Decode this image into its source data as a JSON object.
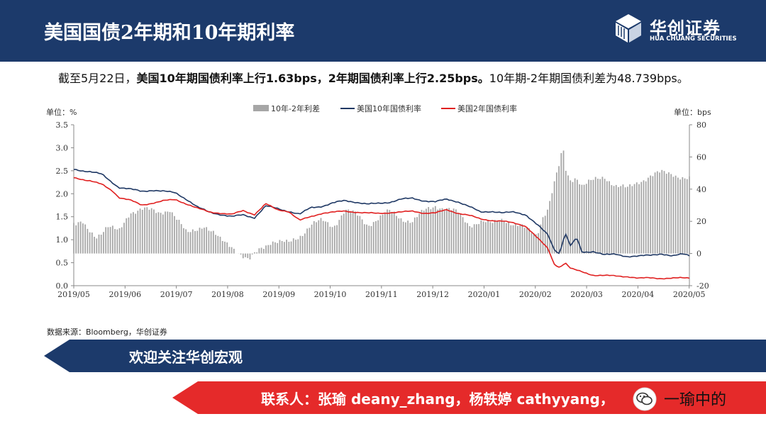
{
  "header": {
    "title": "美国国债2年期和10年期利率"
  },
  "logo": {
    "cn": "华创证券",
    "en": "HUA CHUANG SECURITIES"
  },
  "summary": {
    "prefix": "截至5月22日，",
    "bold_part": "美国10年期国债利率上行1.63bps，2年期国债利率上行2.25bps。",
    "suffix": "10年期-2年期国债利差为48.739bps。"
  },
  "chart_data": {
    "type": "bar+line",
    "left_unit": "单位：%",
    "right_unit": "单位：bps",
    "y_left": {
      "min": 0,
      "max": 3.5,
      "ticks": [
        "0.0",
        "0.5",
        "1.0",
        "1.5",
        "2.0",
        "2.5",
        "3.0",
        "3.5"
      ]
    },
    "y_right": {
      "min": -20,
      "max": 80,
      "ticks": [
        "-20",
        "0",
        "20",
        "40",
        "60",
        "80"
      ]
    },
    "x_ticks": [
      "2019/05",
      "2019/06",
      "2019/07",
      "2019/08",
      "2019/09",
      "2019/10",
      "2019/11",
      "2019/12",
      "2020/01",
      "2020/02",
      "2020/03",
      "2020/04",
      "2020/05"
    ],
    "legend": {
      "spread": "10年-2年利差",
      "y10": "美国10年国债利率",
      "y2": "美国2年国债利率"
    },
    "colors": {
      "spread": "#a6a6a6",
      "y10": "#1f3864",
      "y2": "#e02020"
    },
    "series": [
      {
        "name": "10年-2年利差",
        "anchors": [
          [
            0,
            19
          ],
          [
            0.3,
            17
          ],
          [
            0.7,
            19
          ],
          [
            1.0,
            16
          ],
          [
            1.5,
            13
          ],
          [
            2.0,
            11
          ],
          [
            3.0,
            17
          ],
          [
            4.0,
            13
          ],
          [
            5.0,
            26
          ],
          [
            6.0,
            28
          ],
          [
            7.5,
            25
          ],
          [
            8.5,
            28
          ],
          [
            10.0,
            12
          ],
          [
            11.5,
            18
          ],
          [
            13.0,
            8
          ],
          [
            14.0,
            5
          ],
          [
            15.0,
            -2
          ],
          [
            15.5,
            -5
          ],
          [
            16.5,
            3
          ],
          [
            17.5,
            8
          ],
          [
            19.0,
            6
          ],
          [
            20.0,
            11
          ],
          [
            21.0,
            18
          ],
          [
            22.0,
            20
          ],
          [
            23.0,
            17
          ],
          [
            24.0,
            27
          ],
          [
            25.0,
            24
          ],
          [
            26.0,
            18
          ],
          [
            27.0,
            22
          ],
          [
            28.0,
            26
          ],
          [
            29.0,
            22
          ],
          [
            30.0,
            20
          ],
          [
            31.0,
            26
          ],
          [
            32.0,
            30
          ],
          [
            33.0,
            28
          ],
          [
            34.0,
            25
          ],
          [
            35.0,
            18
          ],
          [
            36.0,
            20
          ],
          [
            37.0,
            18
          ],
          [
            38.0,
            22
          ],
          [
            39.0,
            18
          ],
          [
            40.0,
            15
          ],
          [
            41.0,
            12
          ],
          [
            41.5,
            23
          ],
          [
            42.0,
            28
          ],
          [
            42.5,
            42
          ],
          [
            43.0,
            55
          ],
          [
            43.3,
            66
          ],
          [
            43.6,
            50
          ],
          [
            44.0,
            46
          ],
          [
            44.5,
            48
          ],
          [
            45.0,
            42
          ],
          [
            46.0,
            45
          ],
          [
            47.0,
            48
          ],
          [
            48.0,
            42
          ],
          [
            49.0,
            40
          ],
          [
            50.0,
            45
          ],
          [
            51.0,
            48
          ],
          [
            52.0,
            50
          ],
          [
            53.0,
            50
          ],
          [
            54.0,
            47
          ],
          [
            54.5,
            46
          ]
        ]
      },
      {
        "name": "美国10年国债利率",
        "anchors": [
          [
            0,
            2.53
          ],
          [
            1.5,
            2.48
          ],
          [
            2.5,
            2.42
          ],
          [
            3.0,
            2.32
          ],
          [
            4.0,
            2.14
          ],
          [
            5.0,
            2.1
          ],
          [
            6.0,
            2.05
          ],
          [
            7.0,
            2.08
          ],
          [
            8.0,
            2.05
          ],
          [
            9.0,
            2.02
          ],
          [
            10.0,
            1.88
          ],
          [
            11.0,
            1.7
          ],
          [
            12.0,
            1.6
          ],
          [
            13.0,
            1.55
          ],
          [
            14.0,
            1.5
          ],
          [
            15.0,
            1.54
          ],
          [
            16.0,
            1.48
          ],
          [
            17.0,
            1.73
          ],
          [
            18.0,
            1.68
          ],
          [
            19.0,
            1.62
          ],
          [
            20.0,
            1.55
          ],
          [
            21.0,
            1.7
          ],
          [
            22.0,
            1.73
          ],
          [
            23.0,
            1.8
          ],
          [
            24.0,
            1.85
          ],
          [
            25.0,
            1.82
          ],
          [
            26.0,
            1.77
          ],
          [
            27.0,
            1.79
          ],
          [
            28.0,
            1.82
          ],
          [
            29.0,
            1.88
          ],
          [
            30.0,
            1.9
          ],
          [
            31.0,
            1.85
          ],
          [
            32.0,
            1.82
          ],
          [
            33.0,
            1.88
          ],
          [
            34.0,
            1.83
          ],
          [
            35.0,
            1.72
          ],
          [
            36.0,
            1.6
          ],
          [
            37.0,
            1.62
          ],
          [
            38.0,
            1.58
          ],
          [
            39.0,
            1.6
          ],
          [
            40.0,
            1.55
          ],
          [
            41.0,
            1.33
          ],
          [
            42.0,
            1.1
          ],
          [
            42.5,
            0.8
          ],
          [
            43.0,
            0.7
          ],
          [
            43.5,
            1.15
          ],
          [
            44.0,
            0.85
          ],
          [
            44.5,
            1.05
          ],
          [
            45.0,
            0.72
          ],
          [
            46.0,
            0.75
          ],
          [
            47.0,
            0.67
          ],
          [
            48.0,
            0.68
          ],
          [
            49.0,
            0.64
          ],
          [
            50.0,
            0.64
          ],
          [
            51.0,
            0.66
          ],
          [
            52.0,
            0.7
          ],
          [
            53.0,
            0.64
          ],
          [
            54.0,
            0.69
          ],
          [
            54.5,
            0.66
          ]
        ]
      },
      {
        "name": "美国2年国债利率",
        "anchors": [
          [
            0,
            2.35
          ],
          [
            1.5,
            2.28
          ],
          [
            2.5,
            2.2
          ],
          [
            3.5,
            2.05
          ],
          [
            4.0,
            1.92
          ],
          [
            5.0,
            1.86
          ],
          [
            6.0,
            1.75
          ],
          [
            7.0,
            1.8
          ],
          [
            8.0,
            1.85
          ],
          [
            9.0,
            1.87
          ],
          [
            10.0,
            1.78
          ],
          [
            11.0,
            1.68
          ],
          [
            12.0,
            1.6
          ],
          [
            13.0,
            1.58
          ],
          [
            14.0,
            1.55
          ],
          [
            15.0,
            1.63
          ],
          [
            16.0,
            1.55
          ],
          [
            17.0,
            1.78
          ],
          [
            18.0,
            1.65
          ],
          [
            19.0,
            1.62
          ],
          [
            20.0,
            1.42
          ],
          [
            21.0,
            1.5
          ],
          [
            22.0,
            1.58
          ],
          [
            23.0,
            1.6
          ],
          [
            24.0,
            1.62
          ],
          [
            25.0,
            1.6
          ],
          [
            26.0,
            1.58
          ],
          [
            27.0,
            1.57
          ],
          [
            28.0,
            1.59
          ],
          [
            29.0,
            1.6
          ],
          [
            30.0,
            1.62
          ],
          [
            31.0,
            1.58
          ],
          [
            32.0,
            1.58
          ],
          [
            33.0,
            1.65
          ],
          [
            34.0,
            1.58
          ],
          [
            35.0,
            1.53
          ],
          [
            36.0,
            1.45
          ],
          [
            37.0,
            1.42
          ],
          [
            38.0,
            1.4
          ],
          [
            39.0,
            1.36
          ],
          [
            40.0,
            1.3
          ],
          [
            41.0,
            1.05
          ],
          [
            42.0,
            0.8
          ],
          [
            42.5,
            0.48
          ],
          [
            43.0,
            0.4
          ],
          [
            43.5,
            0.5
          ],
          [
            44.0,
            0.37
          ],
          [
            45.0,
            0.3
          ],
          [
            46.0,
            0.23
          ],
          [
            47.0,
            0.22
          ],
          [
            48.0,
            0.21
          ],
          [
            49.0,
            0.2
          ],
          [
            50.0,
            0.16
          ],
          [
            51.0,
            0.17
          ],
          [
            52.0,
            0.16
          ],
          [
            53.0,
            0.16
          ],
          [
            54.0,
            0.17
          ],
          [
            54.5,
            0.17
          ]
        ]
      }
    ]
  },
  "source": "数据来源：Bloomberg，华创证券",
  "banner1": "欢迎关注华创宏观",
  "banner2": "联系人：张瑜 deany_zhang，杨轶婷 cathyyang，",
  "wechat": {
    "icon": "wechat-icon",
    "name": "一瑜中的"
  }
}
